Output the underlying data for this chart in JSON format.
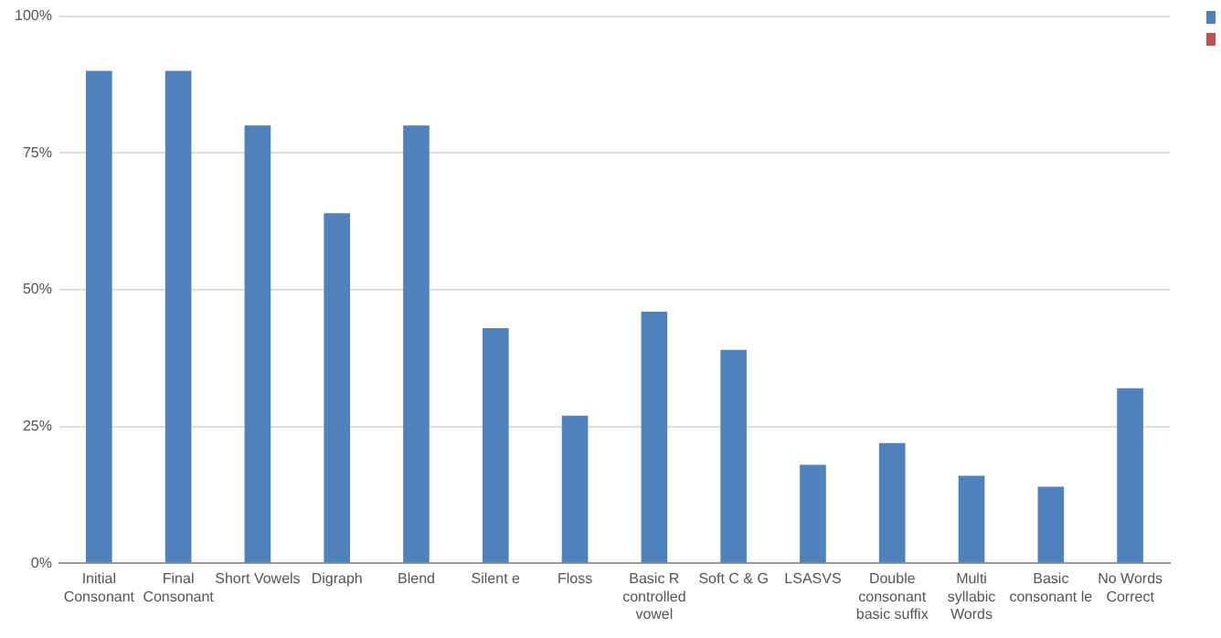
{
  "chart_data": {
    "type": "bar",
    "categories": [
      "Initial Consonant",
      "Final Consonant",
      "Short Vowels",
      "Digraph",
      "Blend",
      "Silent e",
      "Floss",
      "Basic R controlled vowel",
      "Soft C & G",
      "LSASVS",
      "Double consonant basic suffix",
      "Multi syllabic Words",
      "Basic consonant le",
      "No Words Correct"
    ],
    "series": [
      {
        "color": "#4f81bd",
        "values": [
          90,
          90,
          80,
          64,
          80,
          43,
          27,
          46,
          39,
          18,
          22,
          16,
          14,
          32
        ]
      }
    ],
    "ylim": [
      0,
      100
    ],
    "yticks": [
      {
        "value": 0,
        "label": "0%"
      },
      {
        "value": 25,
        "label": "25%"
      },
      {
        "value": 50,
        "label": "50%"
      },
      {
        "value": 75,
        "label": "75%"
      },
      {
        "value": 100,
        "label": "100%"
      }
    ],
    "grid": "y"
  }
}
